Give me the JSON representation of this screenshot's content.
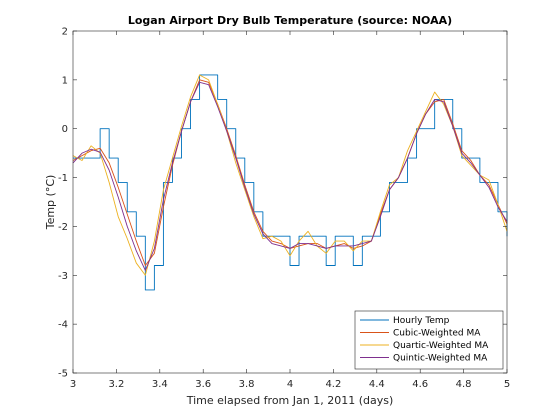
{
  "chart_data": {
    "type": "line",
    "title": "Logan Airport Dry Bulb Temperature (source: NOAA)",
    "xlabel": "Time elapsed from Jan 1, 2011 (days)",
    "ylabel": "Temp (°C)",
    "xlim": [
      3,
      5
    ],
    "ylim": [
      -5,
      2
    ],
    "xticks": [
      3,
      3.2,
      3.4,
      3.6,
      3.8,
      4,
      4.2,
      4.4,
      4.6,
      4.8,
      5
    ],
    "xtick_labels": [
      "3",
      "3.2",
      "3.4",
      "3.6",
      "3.8",
      "4",
      "4.2",
      "4.4",
      "4.6",
      "4.8",
      "5"
    ],
    "yticks": [
      -5,
      -4,
      -3,
      -2,
      -1,
      0,
      1,
      2
    ],
    "ytick_labels": [
      "-5",
      "-4",
      "-3",
      "-2",
      "-1",
      "0",
      "1",
      "2"
    ],
    "grid": false,
    "legend_position": "bottom-right",
    "series": [
      {
        "name": "Hourly Temp",
        "color": "#0072BD",
        "step": true,
        "x": [
          3.0,
          3.04167,
          3.08333,
          3.125,
          3.16667,
          3.20833,
          3.25,
          3.29167,
          3.33333,
          3.375,
          3.41667,
          3.45833,
          3.5,
          3.54167,
          3.58333,
          3.625,
          3.66667,
          3.70833,
          3.75,
          3.79167,
          3.83333,
          3.875,
          3.91667,
          3.95833,
          4.0,
          4.04167,
          4.08333,
          4.125,
          4.16667,
          4.20833,
          4.25,
          4.29167,
          4.33333,
          4.375,
          4.41667,
          4.45833,
          4.5,
          4.54167,
          4.58333,
          4.625,
          4.66667,
          4.70833,
          4.75,
          4.79167,
          4.83333,
          4.875,
          4.91667,
          4.95833,
          5.0
        ],
        "y": [
          -0.6,
          -0.6,
          -0.6,
          0.0,
          -0.6,
          -1.1,
          -1.7,
          -2.2,
          -3.3,
          -2.8,
          -1.1,
          -0.6,
          0.0,
          0.6,
          1.1,
          1.1,
          0.6,
          0.0,
          -0.6,
          -1.1,
          -1.7,
          -2.2,
          -2.2,
          -2.2,
          -2.8,
          -2.2,
          -2.2,
          -2.2,
          -2.8,
          -2.2,
          -2.2,
          -2.8,
          -2.2,
          -2.2,
          -1.7,
          -1.1,
          -1.1,
          -0.6,
          0.0,
          0.0,
          0.6,
          0.6,
          0.0,
          -0.6,
          -0.6,
          -1.1,
          -1.1,
          -1.7,
          -2.2
        ]
      },
      {
        "name": "Cubic-Weighted MA",
        "color": "#D95319",
        "step": false,
        "x": [
          3.0,
          3.04167,
          3.08333,
          3.125,
          3.16667,
          3.20833,
          3.25,
          3.29167,
          3.33333,
          3.375,
          3.41667,
          3.45833,
          3.5,
          3.54167,
          3.58333,
          3.625,
          3.66667,
          3.70833,
          3.75,
          3.79167,
          3.83333,
          3.875,
          3.91667,
          3.95833,
          4.0,
          4.04167,
          4.08333,
          4.125,
          4.16667,
          4.20833,
          4.25,
          4.29167,
          4.33333,
          4.375,
          4.41667,
          4.45833,
          4.5,
          4.54167,
          4.58333,
          4.625,
          4.66667,
          4.70833,
          4.75,
          4.79167,
          4.83333,
          4.875,
          4.91667,
          4.95833,
          5.0
        ],
        "y": [
          -0.65,
          -0.55,
          -0.45,
          -0.4,
          -0.7,
          -1.2,
          -1.75,
          -2.3,
          -2.8,
          -2.55,
          -1.6,
          -0.75,
          -0.05,
          0.55,
          1.0,
          0.95,
          0.5,
          0.0,
          -0.55,
          -1.15,
          -1.7,
          -2.1,
          -2.3,
          -2.35,
          -2.45,
          -2.4,
          -2.35,
          -2.35,
          -2.45,
          -2.4,
          -2.35,
          -2.45,
          -2.4,
          -2.3,
          -1.75,
          -1.25,
          -1.0,
          -0.6,
          -0.1,
          0.3,
          0.55,
          0.6,
          0.1,
          -0.45,
          -0.65,
          -0.95,
          -1.15,
          -1.55,
          -1.95
        ]
      },
      {
        "name": "Quartic-Weighted MA",
        "color": "#EDB120",
        "step": false,
        "x": [
          3.0,
          3.04167,
          3.08333,
          3.125,
          3.16667,
          3.20833,
          3.25,
          3.29167,
          3.33333,
          3.375,
          3.41667,
          3.45833,
          3.5,
          3.54167,
          3.58333,
          3.625,
          3.66667,
          3.70833,
          3.75,
          3.79167,
          3.83333,
          3.875,
          3.91667,
          3.95833,
          4.0,
          4.04167,
          4.08333,
          4.125,
          4.16667,
          4.20833,
          4.25,
          4.29167,
          4.33333,
          4.375,
          4.41667,
          4.45833,
          4.5,
          4.54167,
          4.58333,
          4.625,
          4.66667,
          4.70833,
          4.75,
          4.79167,
          4.83333,
          4.875,
          4.91667,
          4.95833,
          5.0
        ],
        "y": [
          -0.55,
          -0.65,
          -0.35,
          -0.5,
          -1.1,
          -1.8,
          -2.25,
          -2.75,
          -3.0,
          -2.3,
          -1.25,
          -0.6,
          0.05,
          0.65,
          1.1,
          1.0,
          0.5,
          -0.05,
          -0.7,
          -1.25,
          -1.8,
          -2.25,
          -2.2,
          -2.3,
          -2.6,
          -2.3,
          -2.1,
          -2.4,
          -2.55,
          -2.3,
          -2.3,
          -2.5,
          -2.3,
          -2.3,
          -1.7,
          -1.15,
          -1.0,
          -0.45,
          -0.05,
          0.35,
          0.75,
          0.5,
          0.05,
          -0.55,
          -0.75,
          -0.95,
          -1.05,
          -1.55,
          -2.1
        ]
      },
      {
        "name": "Quintic-Weighted MA",
        "color": "#7E2F8E",
        "step": false,
        "x": [
          3.0,
          3.04167,
          3.08333,
          3.125,
          3.16667,
          3.20833,
          3.25,
          3.29167,
          3.33333,
          3.375,
          3.41667,
          3.45833,
          3.5,
          3.54167,
          3.58333,
          3.625,
          3.66667,
          3.70833,
          3.75,
          3.79167,
          3.83333,
          3.875,
          3.91667,
          3.95833,
          4.0,
          4.04167,
          4.08333,
          4.125,
          4.16667,
          4.20833,
          4.25,
          4.29167,
          4.33333,
          4.375,
          4.41667,
          4.45833,
          4.5,
          4.54167,
          4.58333,
          4.625,
          4.66667,
          4.70833,
          4.75,
          4.79167,
          4.83333,
          4.875,
          4.91667,
          4.95833,
          5.0
        ],
        "y": [
          -0.7,
          -0.5,
          -0.42,
          -0.48,
          -0.85,
          -1.4,
          -2.0,
          -2.5,
          -2.9,
          -2.45,
          -1.45,
          -0.7,
          -0.05,
          0.55,
          0.95,
          0.9,
          0.45,
          -0.05,
          -0.6,
          -1.2,
          -1.75,
          -2.15,
          -2.35,
          -2.4,
          -2.45,
          -2.35,
          -2.35,
          -2.4,
          -2.45,
          -2.4,
          -2.4,
          -2.4,
          -2.35,
          -2.3,
          -1.8,
          -1.25,
          -1.0,
          -0.6,
          -0.1,
          0.3,
          0.6,
          0.55,
          0.05,
          -0.5,
          -0.7,
          -0.95,
          -1.2,
          -1.6,
          -1.9
        ]
      }
    ]
  }
}
